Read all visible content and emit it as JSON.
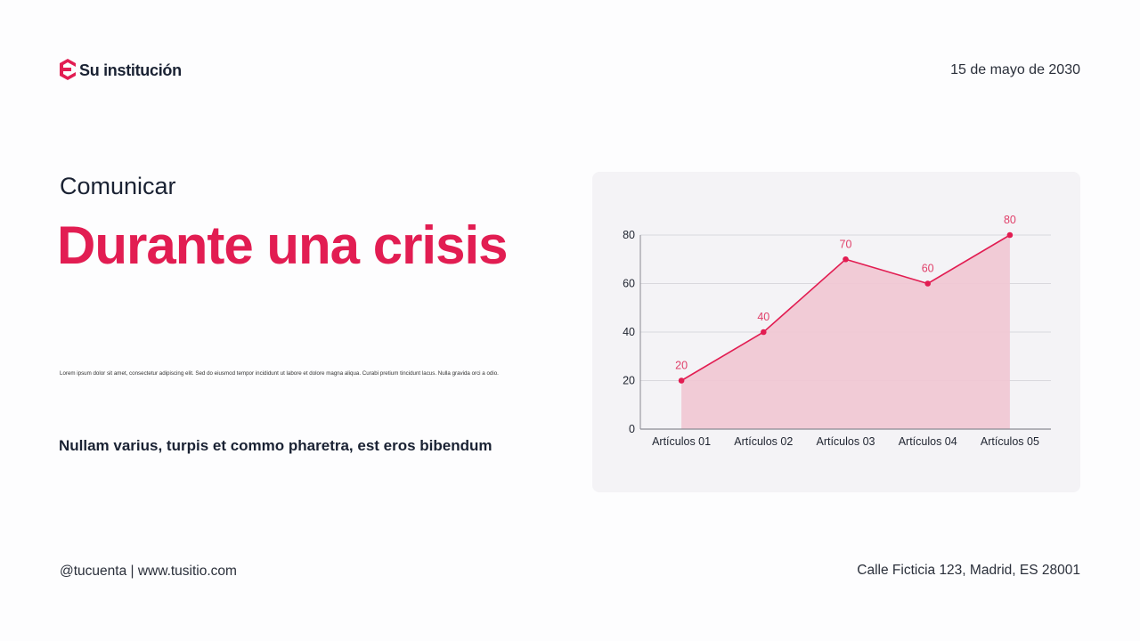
{
  "header": {
    "brand": "Su institución",
    "date": "15 de mayo de 2030"
  },
  "main": {
    "kicker": "Comunicar",
    "title": "Durante una crisis",
    "body": "Lorem ipsum dolor sit amet, consectetur adipiscing elit. Sed do eiusmod tempor incididunt ut labore et dolore magna aliqua. Curabi pretium tincidunt lacus. Nulla gravida orci a odio.",
    "subtitle": "Nullam varius, turpis et commo pharetra, est eros bibendum"
  },
  "footer": {
    "social": "@tucuenta | www.tusitio.com",
    "address": "Calle Ficticia 123, Madrid, ES 28001"
  },
  "colors": {
    "accent": "#e21d52",
    "area_fill": "#f1c6d3",
    "card_bg": "#f4f3f6"
  },
  "chart_data": {
    "type": "area",
    "title": "",
    "xlabel": "",
    "ylabel": "",
    "categories": [
      "Artículos 01",
      "Artículos 02",
      "Artículos 03",
      "Artículos 04",
      "Artículos 05"
    ],
    "values": [
      20,
      40,
      70,
      60,
      80
    ],
    "data_labels": [
      "20",
      "40",
      "70",
      "60",
      "80"
    ],
    "yticks": [
      "0",
      "20",
      "40",
      "60",
      "80"
    ],
    "ylim": [
      0,
      80
    ],
    "grid": true,
    "legend": "none"
  }
}
